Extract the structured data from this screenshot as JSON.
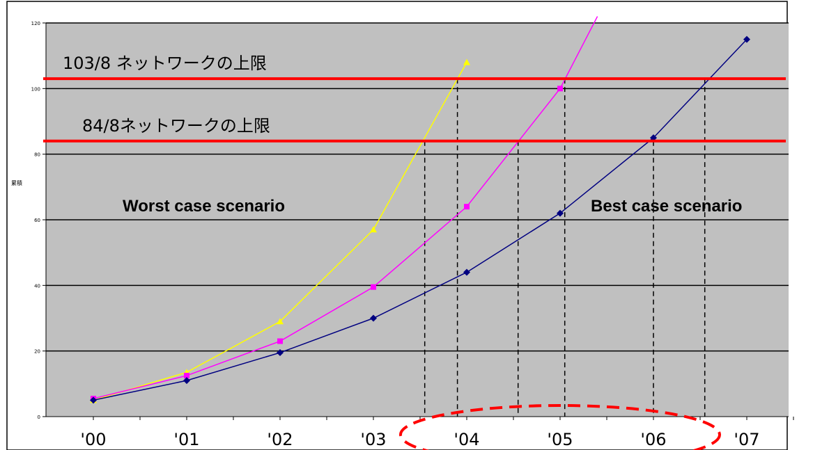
{
  "chart_data": {
    "type": "line",
    "ylabel": "累積",
    "ylim": [
      0,
      120
    ],
    "yticks": [
      "0",
      "20",
      "40",
      "60",
      "80",
      "100",
      "120"
    ],
    "categories": [
      "'00",
      "'01",
      "'02",
      "'03",
      "'04",
      "'05",
      "'06",
      "'07"
    ],
    "grid": true,
    "plot_background": "#c0c0c0",
    "series": [
      {
        "name": "Worst case scenario",
        "color": "#ffff00",
        "label_color": "#ffff00",
        "marker": "triangle",
        "points": [
          [
            0,
            5
          ],
          [
            1,
            13.5
          ],
          [
            2,
            29
          ],
          [
            3,
            57
          ],
          [
            4,
            108
          ]
        ]
      },
      {
        "name": "",
        "color": "#ff00ff",
        "marker": "square",
        "points": [
          [
            0,
            5.5
          ],
          [
            1,
            12.5
          ],
          [
            2,
            23
          ],
          [
            3,
            39.5
          ],
          [
            4,
            64
          ],
          [
            5,
            100
          ],
          [
            5.4,
            122
          ]
        ]
      },
      {
        "name": "Best case scenario",
        "color": "#000080",
        "label_color": "#000080",
        "marker": "diamond",
        "points": [
          [
            0,
            5
          ],
          [
            1,
            11
          ],
          [
            2,
            19.5
          ],
          [
            3,
            30
          ],
          [
            4,
            44
          ],
          [
            5,
            62
          ],
          [
            6,
            85
          ],
          [
            7,
            115
          ]
        ]
      }
    ],
    "reference_lines": [
      {
        "label": "103/8 ネットワークの上限",
        "y": 103,
        "color": "#ff0000"
      },
      {
        "label": "84/8ネットワークの上限",
        "y": 84,
        "color": "#ff0000"
      }
    ],
    "dashed_verticals": [
      3.55,
      3.9,
      4.55,
      5.05,
      6.0,
      6.55
    ],
    "highlight_ellipse": {
      "from_category": "'04",
      "to_category": "'06",
      "color": "#ff0000"
    }
  }
}
